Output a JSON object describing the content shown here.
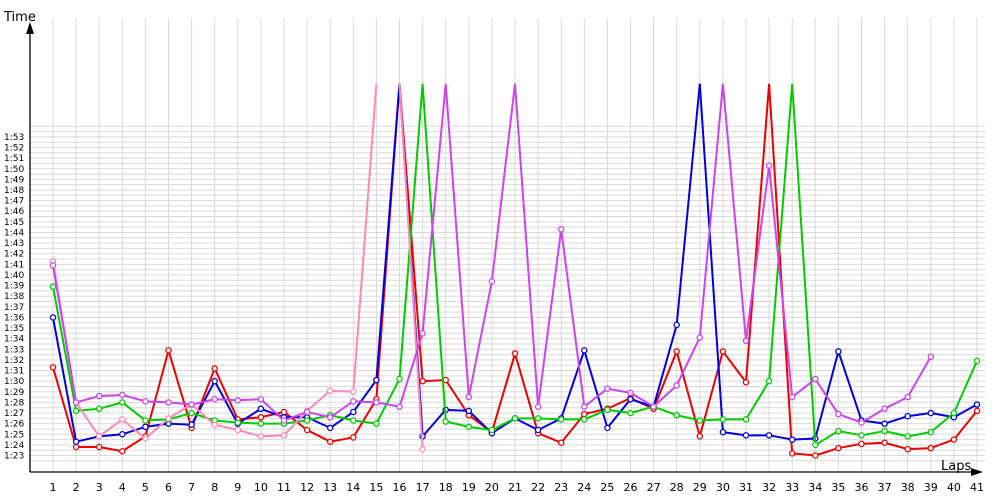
{
  "chart_data": {
    "type": "line",
    "title": "",
    "ylabel": "Time",
    "xlabel": "Laps",
    "x": [
      1,
      2,
      3,
      4,
      5,
      6,
      7,
      8,
      9,
      10,
      11,
      12,
      13,
      14,
      15,
      16,
      17,
      18,
      19,
      20,
      21,
      22,
      23,
      24,
      25,
      26,
      27,
      28,
      29,
      30,
      31,
      32,
      33,
      34,
      35,
      36,
      37,
      38,
      39,
      40,
      41
    ],
    "y_ticks": [
      "1:23",
      "1:24",
      "1:25",
      "1:26",
      "1:27",
      "1:28",
      "1:29",
      "1:30",
      "1:31",
      "1:32",
      "1:33",
      "1:34",
      "1:35",
      "1:36",
      "1:37",
      "1:38",
      "1:39",
      "1:40",
      "1:41",
      "1:42",
      "1:43",
      "1:44",
      "1:45",
      "1:46",
      "1:47",
      "1:48",
      "1:49",
      "1:50",
      "1:51",
      "1:52",
      "1:53"
    ],
    "ylim": [
      82,
      114
    ],
    "grid": true,
    "series": [
      {
        "color": "#ee0000",
        "values": [
          91.3,
          83.8,
          83.8,
          83.4,
          84.8,
          92.9,
          85.6,
          91.2,
          86.4,
          86.6,
          87.1,
          85.4,
          84.3,
          84.7,
          88.3,
          null,
          90.0,
          90.1,
          86.8,
          85.2,
          92.6,
          85.1,
          84.2,
          86.9,
          87.4,
          88.4,
          87.4,
          92.8,
          84.8,
          92.8,
          89.9,
          null,
          83.2,
          83.0,
          83.7,
          84.1,
          84.2,
          83.6,
          83.7,
          84.5,
          87.2
        ]
      },
      {
        "color": "#0000dd",
        "values": [
          96.0,
          84.3,
          84.8,
          85.0,
          85.7,
          86.0,
          85.9,
          90.0,
          86.0,
          87.4,
          86.6,
          86.6,
          85.6,
          87.1,
          90.1,
          null,
          84.8,
          87.3,
          87.2,
          85.1,
          86.5,
          85.4,
          86.5,
          92.9,
          85.6,
          88.3,
          87.6,
          95.3,
          null,
          85.2,
          84.9,
          84.9,
          84.5,
          84.6,
          92.8,
          86.3,
          86.0,
          86.7,
          87.0,
          86.6,
          87.8
        ]
      },
      {
        "color": "#00cc00",
        "values": [
          98.9,
          87.2,
          87.4,
          88.0,
          86.3,
          86.4,
          87.0,
          86.3,
          86.1,
          86.0,
          86.0,
          86.3,
          86.8,
          86.3,
          86.0,
          90.2,
          null,
          86.2,
          85.7,
          85.4,
          86.5,
          86.5,
          86.4,
          86.4,
          87.3,
          87.0,
          87.6,
          86.8,
          86.3,
          86.4,
          86.4,
          90.0,
          null,
          84.0,
          85.3,
          84.9,
          85.3,
          84.8,
          85.2,
          87.0,
          91.9
        ]
      },
      {
        "color": "#ff88bb",
        "values": [
          101.3,
          88.0,
          84.8,
          86.4,
          84.6,
          86.5,
          87.8,
          85.9,
          85.4,
          84.8,
          84.9,
          87.2,
          89.1,
          89.0,
          null,
          null,
          83.6,
          null,
          null,
          null,
          null,
          null,
          null,
          null,
          null,
          null,
          null,
          null,
          null,
          null,
          null,
          null,
          null,
          null,
          null,
          null,
          null,
          null,
          null,
          null,
          null
        ]
      },
      {
        "color": "#cc44ee",
        "values": [
          100.9,
          88.0,
          88.6,
          88.7,
          88.1,
          88.0,
          87.8,
          88.3,
          88.2,
          88.3,
          86.3,
          87.1,
          86.6,
          88.1,
          88.0,
          87.6,
          94.5,
          null,
          88.5,
          99.4,
          null,
          87.6,
          104.3,
          87.6,
          89.3,
          88.9,
          87.6,
          89.6,
          94.1,
          null,
          93.8,
          110.3,
          88.5,
          90.2,
          86.9,
          86.1,
          87.4,
          88.5,
          92.3,
          null,
          null
        ]
      }
    ]
  }
}
